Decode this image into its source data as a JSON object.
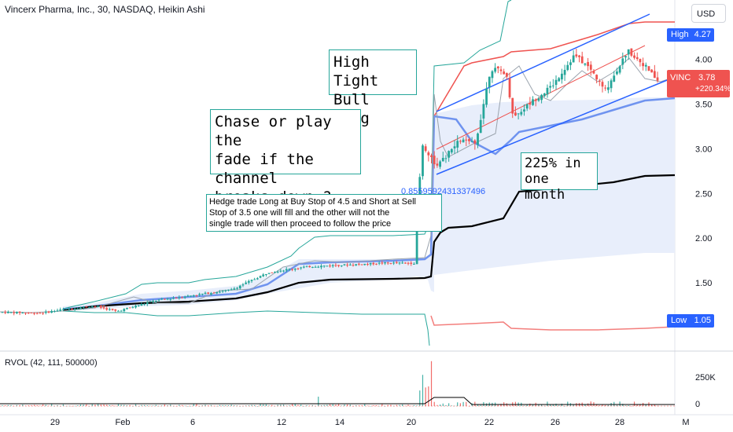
{
  "legend": {
    "title": "Vincerx Pharma, Inc., 30, NASDAQ, Heikin Ashi"
  },
  "currency_button": "USD",
  "rvol_legend": "RVOL (42, 111, 500000)",
  "badges": {
    "high_label": "High",
    "high_value": "4.27",
    "low_label": "Low",
    "low_value": "1.05",
    "symbol": "VINC",
    "last_price": "3.78",
    "change_pct": "+220.34%"
  },
  "annotations": {
    "bull_flag": "High Tight\nBull Flag",
    "chase": "Chase  or play the\nfade if the channel\nbreaks down ?",
    "gain": "225% in\none month",
    "hedge": " Hedge trade Long at Buy Stop of 4.5 and Short at Sell\nStop of 3.5 one will fill and the other will not the\nsingle trade will then proceed to follow the price",
    "fib_value": "0.8559592431337496"
  },
  "colors": {
    "up": "#26a69a",
    "down": "#ef5350",
    "channel": "#2962ff",
    "band_fill": "#e8eefb",
    "upper_band": "#ef5350",
    "envelope": "#26a69a",
    "avwap": "#000000",
    "mid_band": "#6f93ef"
  },
  "chart_data": {
    "type": "candlestick",
    "style": "Heikin Ashi",
    "interval": "30",
    "y_axis": {
      "ticks": [
        1.5,
        2.0,
        2.5,
        3.0,
        3.5,
        4.0
      ],
      "tick_labels": [
        "1.50",
        "2.00",
        "2.50",
        "3.00",
        "3.50",
        "4.00"
      ]
    },
    "x_axis": {
      "tick_labels": [
        "29",
        "Feb",
        "6",
        "12",
        "14",
        "20",
        "22",
        "26",
        "28",
        "M"
      ]
    },
    "price_path": [
      {
        "t": 0,
        "price": 1.17
      },
      {
        "t": 5,
        "price": 1.16
      },
      {
        "t": 8,
        "price": 1.2
      },
      {
        "t": 12,
        "price": 1.24
      },
      {
        "t": 15,
        "price": 1.18
      },
      {
        "t": 20,
        "price": 1.3
      },
      {
        "t": 25,
        "price": 1.36
      },
      {
        "t": 30,
        "price": 1.42
      },
      {
        "t": 35,
        "price": 1.62
      },
      {
        "t": 40,
        "price": 1.68
      },
      {
        "t": 50,
        "price": 1.72
      },
      {
        "t": 54,
        "price": 1.72
      },
      {
        "t": 55,
        "price": 3.05
      },
      {
        "t": 57,
        "price": 2.8
      },
      {
        "t": 60,
        "price": 3.1
      },
      {
        "t": 62,
        "price": 3.05
      },
      {
        "t": 64,
        "price": 3.9
      },
      {
        "t": 66,
        "price": 3.85
      },
      {
        "t": 67,
        "price": 3.35
      },
      {
        "t": 69,
        "price": 3.5
      },
      {
        "t": 72,
        "price": 3.7
      },
      {
        "t": 75,
        "price": 4.05
      },
      {
        "t": 77,
        "price": 3.9
      },
      {
        "t": 79,
        "price": 3.65
      },
      {
        "t": 82,
        "price": 4.1
      },
      {
        "t": 84,
        "price": 3.95
      },
      {
        "t": 86,
        "price": 3.75
      }
    ],
    "channel": {
      "upper": [
        {
          "t": 55,
          "price": 3.45
        },
        {
          "t": 82,
          "price": 4.5
        }
      ],
      "lower": [
        {
          "t": 55,
          "price": 2.7
        },
        {
          "t": 86,
          "price": 3.78
        }
      ]
    },
    "rvol": {
      "tick_labels": [
        "250K",
        "0"
      ]
    },
    "price_extremes": {
      "high": 4.27,
      "low": 1.05,
      "last": 3.78
    }
  }
}
